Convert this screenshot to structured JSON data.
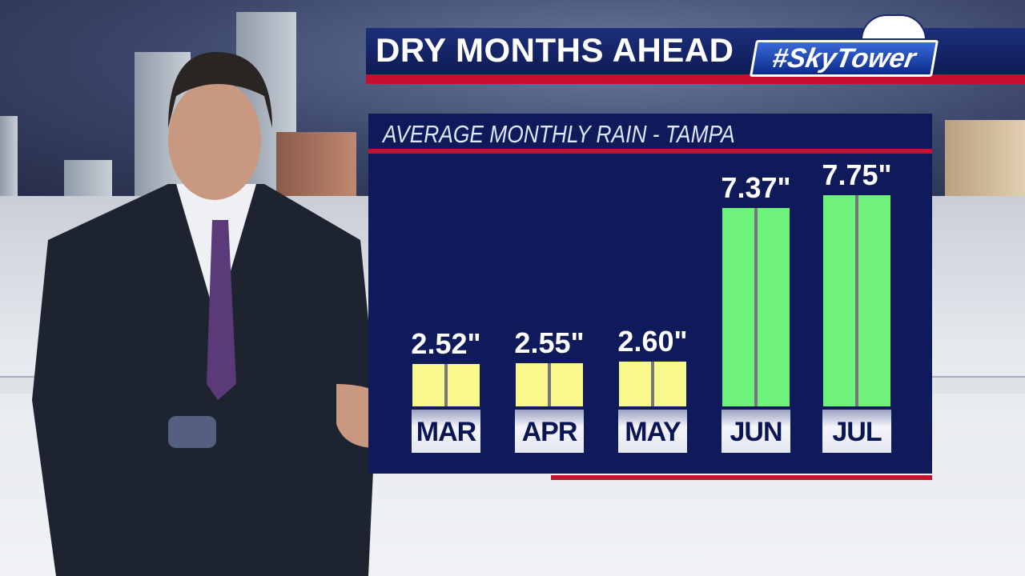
{
  "header": {
    "title": "DRY MONTHS AHEAD",
    "logo": "#SkyTower"
  },
  "colors": {
    "dry_bar": "#f8f88c",
    "wet_bar": "#6ef27a",
    "panel": "#0f1a5a",
    "accent_red": "#c8102e"
  },
  "chart_data": {
    "type": "bar",
    "title": "AVERAGE MONTHLY RAIN - TAMPA",
    "categories": [
      "MAR",
      "APR",
      "MAY",
      "JUN",
      "JUL"
    ],
    "values": [
      2.52,
      2.55,
      2.6,
      7.37,
      7.75
    ],
    "labels": [
      "2.52\"",
      "2.55\"",
      "2.60\"",
      "7.37\"",
      "7.75\""
    ],
    "unit": "inches",
    "grid": false,
    "legend": "none"
  }
}
